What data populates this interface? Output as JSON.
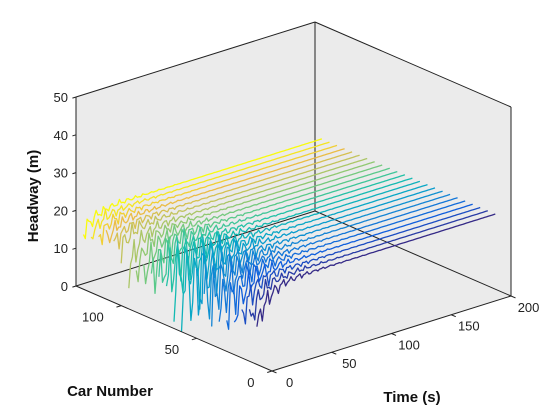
{
  "chart_data": {
    "type": "3d-line",
    "title": "",
    "xlabel": "Time (s)",
    "ylabel": "Car Number",
    "zlabel": "Headway (m)",
    "xlim": [
      0,
      200
    ],
    "ylim": [
      0,
      130
    ],
    "zlim": [
      0,
      50
    ],
    "xticks": [
      0,
      50,
      100,
      150,
      200
    ],
    "yticks": [
      0,
      50,
      100
    ],
    "zticks": [
      0,
      10,
      20,
      30,
      40,
      50
    ],
    "grid": false,
    "colormap": "parula",
    "series_count": 24,
    "car_number_first": 10,
    "car_number_last": 125,
    "time_start_first_car": 0,
    "time_start_last_car": 0,
    "time_end": 200,
    "headway_equilibrium": 20,
    "headway_initial_dip": 10,
    "oscillation_peak_car": 55,
    "oscillation_max_amplitude": 8
  }
}
